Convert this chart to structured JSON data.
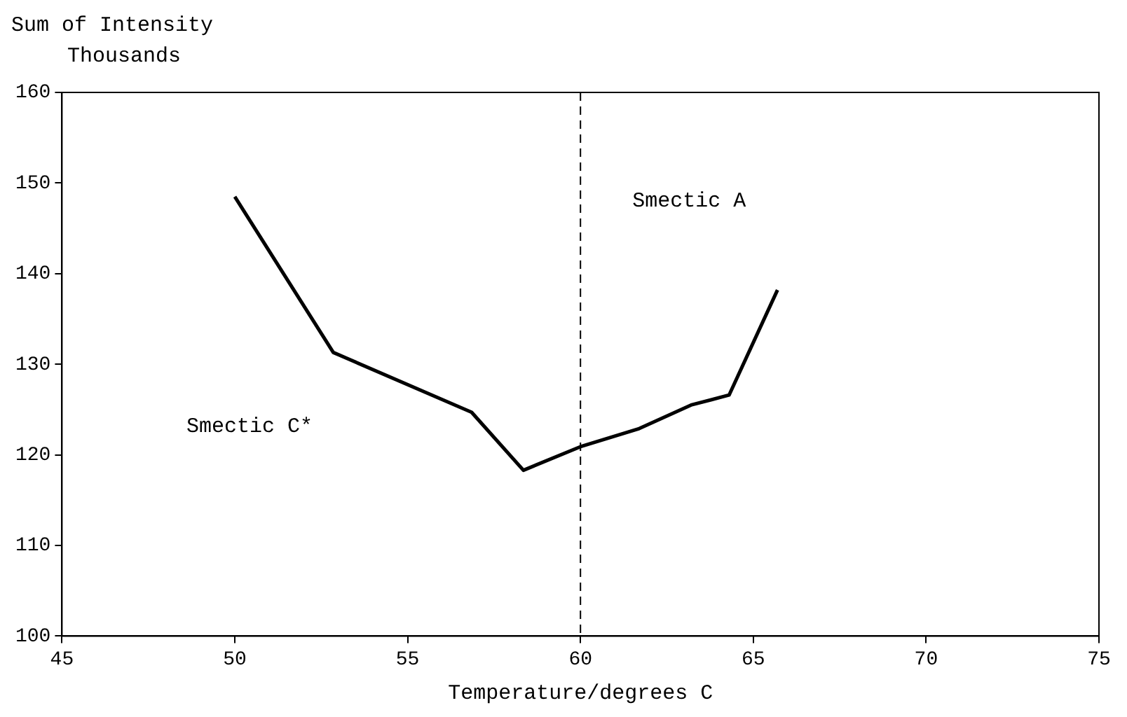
{
  "chart_data": {
    "type": "line",
    "xlabel": "Temperature/degrees C",
    "ylabel": "Sum of Intensity",
    "x": [
      50.0,
      52.85,
      56.85,
      58.35,
      60.0,
      61.7,
      63.2,
      64.3,
      65.7
    ],
    "series": [
      {
        "color": "#000000",
        "values": [
          148.5,
          131.3,
          124.7,
          118.3,
          120.9,
          122.9,
          125.5,
          126.6,
          138.2
        ]
      }
    ],
    "xlim": [
      45,
      75
    ],
    "xticks": [
      45,
      50,
      55,
      60,
      65,
      70,
      75
    ],
    "ylim": [
      100,
      160
    ],
    "yticks": [
      100,
      110,
      120,
      130,
      140,
      150,
      160
    ],
    "grid": false,
    "legend": false,
    "marker": "none",
    "line_style": "solid",
    "ref_lines": [
      {
        "axis": "x",
        "value": 60,
        "color": "#000000",
        "line_style": "dashed"
      }
    ],
    "annotations": [
      "Thousands",
      "Smectic C*",
      "Smectic A"
    ]
  }
}
